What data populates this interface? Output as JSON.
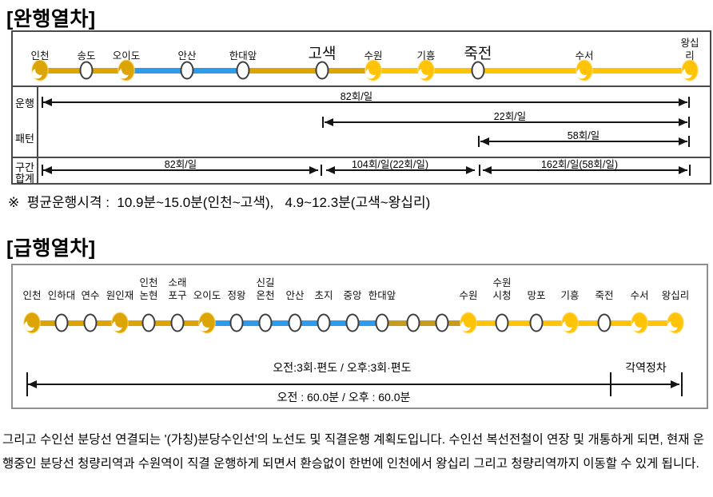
{
  "colors": {
    "suin_gold": "#DCA405",
    "bundang_yellow": "#FFC408",
    "ansan_blue": "#2F9BEC",
    "construction_gold": "#C79B1E"
  },
  "local": {
    "heading": "[완행열차]",
    "stations": [
      {
        "name": "인천",
        "type": "transfer",
        "color": "suin_gold"
      },
      {
        "name": "송도",
        "type": "normal"
      },
      {
        "name": "오이도",
        "type": "transfer",
        "color": "suin_gold"
      },
      {
        "name": "안산",
        "type": "normal"
      },
      {
        "name": "한대앞",
        "type": "normal"
      },
      {
        "name": "고색",
        "type": "normal",
        "big": true
      },
      {
        "name": "수원",
        "type": "transfer",
        "color": "bundang_yellow"
      },
      {
        "name": "기흥",
        "type": "transfer",
        "color": "bundang_yellow"
      },
      {
        "name": "죽전",
        "type": "normal",
        "big": true
      },
      {
        "name": "수서",
        "type": "transfer",
        "color": "bundang_yellow"
      },
      {
        "name": "왕십리",
        "type": "transfer",
        "color": "bundang_yellow"
      }
    ],
    "segments": [
      {
        "from": 0,
        "to": 2,
        "color": "suin_gold"
      },
      {
        "from": 2,
        "to": 4,
        "color": "ansan_blue"
      },
      {
        "from": 4,
        "to": 6,
        "color": "suin_gold"
      },
      {
        "from": 6,
        "to": 10,
        "color": "bundang_yellow"
      }
    ],
    "row_labels": {
      "pattern_top": "운행",
      "pattern_bottom": "패턴",
      "total_top": "구간",
      "total_bottom": "합계"
    },
    "pattern_arrows": [
      {
        "label": "82회/일"
      },
      {
        "label": "22회/일"
      },
      {
        "label": "58회/일"
      }
    ],
    "total_segments": [
      {
        "label": "82회/일"
      },
      {
        "label": "104회/일(22회/일)"
      },
      {
        "label": "162회/일(58회/일)"
      }
    ],
    "note": "※  평균운행시격 :  10.9분~15.0분(인천~고색),   4.9~12.3분(고색~왕십리)"
  },
  "express": {
    "heading": "[급행열차]",
    "stations": [
      {
        "name": "인천",
        "type": "transfer",
        "color": "suin_gold"
      },
      {
        "name": "인하대",
        "type": "normal"
      },
      {
        "name": "연수",
        "type": "normal"
      },
      {
        "name": "원인재",
        "type": "transfer",
        "color": "suin_gold"
      },
      {
        "name": "인천\n논현",
        "type": "normal"
      },
      {
        "name": "소래\n포구",
        "type": "normal"
      },
      {
        "name": "오이도",
        "type": "transfer",
        "color": "suin_gold"
      },
      {
        "name": "정왕",
        "type": "normal"
      },
      {
        "name": "신길\n온천",
        "type": "normal"
      },
      {
        "name": "안산",
        "type": "normal"
      },
      {
        "name": "초지",
        "type": "normal"
      },
      {
        "name": "중앙",
        "type": "normal"
      },
      {
        "name": "한대앞",
        "type": "normal"
      },
      {
        "name": "",
        "type": "normal"
      },
      {
        "name": "",
        "type": "normal"
      },
      {
        "name": "수원",
        "type": "transfer",
        "color": "bundang_yellow"
      },
      {
        "name": "수원\n시청",
        "type": "normal"
      },
      {
        "name": "망포",
        "type": "normal"
      },
      {
        "name": "기흥",
        "type": "transfer",
        "color": "bundang_yellow"
      },
      {
        "name": "죽전",
        "type": "normal"
      },
      {
        "name": "수서",
        "type": "transfer",
        "color": "bundang_yellow"
      },
      {
        "name": "왕십리",
        "type": "transfer",
        "color": "bundang_yellow"
      }
    ],
    "segments": [
      {
        "from": 0,
        "to": 6,
        "color": "suin_gold"
      },
      {
        "from": 6,
        "to": 12,
        "color": "ansan_blue"
      },
      {
        "from": 12,
        "to": 15,
        "color": "construction_gold"
      },
      {
        "from": 15,
        "to": 21,
        "color": "bundang_yellow"
      }
    ],
    "service_label": "오전:3회·편도 / 오후:3회·편도",
    "all_stops_label": "각역정차",
    "time_label": "오전 : 60.0분 / 오후 : 60.0분"
  },
  "footer_paragraph": "그리고 수인선 분당선 연결되는 '(가칭)분당수인선'의 노선도 및 직결운행 계획도입니다. 수인선 복선전철이 연장 및 개통하게 되면, 현재 운행중인 분당선 청량리역과 수원역이 직결 운행하게 되면서 환승없이 한번에 인천에서 왕십리 그리고 청량리역까지 이동할 수 있게 됩니다."
}
